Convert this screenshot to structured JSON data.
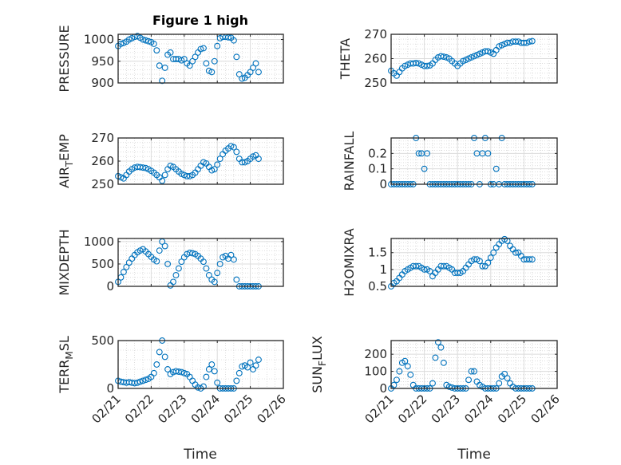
{
  "figure": {
    "title": "Figure 1 high",
    "xlabel": "Time",
    "marker_color": "#0072BD",
    "axes_color": "#262626",
    "grid_color": "#dcdcdc"
  },
  "chart_data": [
    {
      "type": "scatter",
      "id": "pressure",
      "title": "Figure 1 high",
      "ylabel": "PRESSURE",
      "xlabel": "",
      "ylim": [
        900,
        1012
      ],
      "yticks": [
        900,
        950,
        1000
      ],
      "ytick_labels": [
        "900",
        "950",
        "1000"
      ],
      "xlim_hours": [
        0,
        120
      ],
      "xticks_hours": [
        0,
        24,
        48,
        72,
        96,
        120
      ],
      "xtick_labels": [],
      "x_hours": [
        0,
        2,
        4,
        6,
        8,
        10,
        12,
        14,
        16,
        18,
        20,
        22,
        24,
        26,
        28,
        30,
        32,
        34,
        36,
        38,
        40,
        42,
        44,
        46,
        48,
        50,
        52,
        54,
        56,
        58,
        60,
        62,
        64,
        66,
        68,
        70,
        72,
        74,
        76,
        78,
        80,
        82,
        84,
        86,
        88,
        90,
        92,
        94,
        96,
        98,
        100,
        102
      ],
      "values": [
        985,
        990,
        992,
        995,
        1000,
        1003,
        1006,
        1008,
        1004,
        1000,
        998,
        996,
        994,
        990,
        975,
        940,
        905,
        935,
        965,
        970,
        955,
        955,
        955,
        952,
        955,
        945,
        940,
        950,
        960,
        970,
        978,
        980,
        945,
        928,
        925,
        950,
        985,
        1003,
        1006,
        1006,
        1005,
        1004,
        998,
        960,
        920,
        910,
        912,
        918,
        925,
        935,
        945,
        925
      ]
    },
    {
      "type": "scatter",
      "id": "theta",
      "ylabel": "THETA",
      "xlabel": "",
      "ylim": [
        250,
        270
      ],
      "yticks": [
        250,
        260,
        270
      ],
      "ytick_labels": [
        "250",
        "260",
        "270"
      ],
      "xlim_hours": [
        0,
        120
      ],
      "xticks_hours": [
        0,
        24,
        48,
        72,
        96,
        120
      ],
      "xtick_labels": [],
      "x_hours": [
        0,
        2,
        4,
        6,
        8,
        10,
        12,
        14,
        16,
        18,
        20,
        22,
        24,
        26,
        28,
        30,
        32,
        34,
        36,
        38,
        40,
        42,
        44,
        46,
        48,
        50,
        52,
        54,
        56,
        58,
        60,
        62,
        64,
        66,
        68,
        70,
        72,
        74,
        76,
        78,
        80,
        82,
        84,
        86,
        88,
        90,
        92,
        94,
        96,
        98,
        100,
        102
      ],
      "values": [
        255,
        254,
        253,
        254.5,
        256,
        257,
        257.5,
        258,
        258,
        258.2,
        258,
        257.5,
        257,
        257,
        257.2,
        258,
        259.5,
        260.5,
        261,
        260.8,
        260.5,
        260,
        259,
        258,
        257,
        258,
        259,
        259.5,
        260,
        260.5,
        261,
        261.5,
        262,
        262.5,
        263,
        263,
        262.5,
        262,
        263.5,
        265,
        265.5,
        266,
        266.5,
        266.5,
        267,
        267,
        267,
        266.5,
        266.5,
        266.5,
        267,
        267.2
      ]
    },
    {
      "type": "scatter",
      "id": "air_temp",
      "ylabel": "AIR_TEMP",
      "xlabel": "",
      "ylim": [
        250,
        270
      ],
      "yticks": [
        250,
        260,
        270
      ],
      "ytick_labels": [
        "250",
        "260",
        "270"
      ],
      "xlim_hours": [
        0,
        120
      ],
      "xticks_hours": [
        0,
        24,
        48,
        72,
        96,
        120
      ],
      "xtick_labels": [],
      "x_hours": [
        0,
        2,
        4,
        6,
        8,
        10,
        12,
        14,
        16,
        18,
        20,
        22,
        24,
        26,
        28,
        30,
        32,
        34,
        36,
        38,
        40,
        42,
        44,
        46,
        48,
        50,
        52,
        54,
        56,
        58,
        60,
        62,
        64,
        66,
        68,
        70,
        72,
        74,
        76,
        78,
        80,
        82,
        84,
        86,
        88,
        90,
        92,
        94,
        96,
        98,
        100,
        102
      ],
      "values": [
        253.5,
        253,
        252.5,
        254,
        255.5,
        256.5,
        257.2,
        257.5,
        257.4,
        257.2,
        257,
        256.5,
        255.8,
        255,
        254,
        253,
        251.5,
        254,
        256.5,
        258,
        257.5,
        256.5,
        255.5,
        254.5,
        254,
        253.5,
        253.5,
        254,
        255,
        256.5,
        258,
        259.5,
        259,
        257.5,
        256,
        256.5,
        258.5,
        261,
        263,
        264.5,
        265.5,
        266.5,
        266,
        264,
        261,
        259.5,
        259.5,
        260,
        261,
        262,
        262.5,
        261
      ]
    },
    {
      "type": "scatter",
      "id": "rainfall",
      "ylabel": "RAINFALL",
      "xlabel": "",
      "ylim": [
        0,
        0.3
      ],
      "yticks": [
        0,
        0.1,
        0.2
      ],
      "ytick_labels": [
        "0",
        "0.1",
        "0.2"
      ],
      "xlim_hours": [
        0,
        120
      ],
      "xticks_hours": [
        0,
        24,
        48,
        72,
        96,
        120
      ],
      "xtick_labels": [],
      "x_hours": [
        0,
        2,
        4,
        6,
        8,
        10,
        12,
        14,
        16,
        18,
        20,
        22,
        24,
        26,
        28,
        30,
        32,
        34,
        36,
        38,
        40,
        42,
        44,
        46,
        48,
        50,
        52,
        54,
        56,
        58,
        60,
        62,
        64,
        66,
        68,
        70,
        72,
        74,
        76,
        78,
        80,
        82,
        84,
        86,
        88,
        90,
        92,
        94,
        96,
        98,
        100,
        102
      ],
      "values": [
        0,
        0,
        0,
        0,
        0,
        0,
        0,
        0,
        0,
        0.3,
        0.2,
        0.2,
        0.1,
        0.2,
        0,
        0,
        0,
        0,
        0,
        0,
        0,
        0,
        0,
        0,
        0,
        0,
        0,
        0,
        0,
        0,
        0.3,
        0.2,
        0,
        0.2,
        0.3,
        0.2,
        0,
        0,
        0.1,
        0,
        0.3,
        0,
        0,
        0,
        0,
        0,
        0,
        0,
        0,
        0,
        0,
        0
      ]
    },
    {
      "type": "scatter",
      "id": "mixdepth",
      "ylabel": "MIXDEPTH",
      "xlabel": "",
      "ylim": [
        0,
        1070
      ],
      "yticks": [
        0,
        500,
        1000
      ],
      "ytick_labels": [
        "0",
        "500",
        "1000"
      ],
      "xlim_hours": [
        0,
        120
      ],
      "xticks_hours": [
        0,
        24,
        48,
        72,
        96,
        120
      ],
      "xtick_labels": [],
      "x_hours": [
        0,
        2,
        4,
        6,
        8,
        10,
        12,
        14,
        16,
        18,
        20,
        22,
        24,
        26,
        28,
        30,
        32,
        34,
        36,
        38,
        40,
        42,
        44,
        46,
        48,
        50,
        52,
        54,
        56,
        58,
        60,
        62,
        64,
        66,
        68,
        70,
        72,
        74,
        76,
        78,
        80,
        82,
        84,
        86,
        88,
        90,
        92,
        94,
        96,
        98,
        100,
        102
      ],
      "values": [
        100,
        200,
        320,
        430,
        530,
        620,
        700,
        760,
        800,
        830,
        780,
        720,
        660,
        600,
        560,
        800,
        1000,
        900,
        500,
        20,
        100,
        250,
        400,
        550,
        650,
        720,
        750,
        740,
        720,
        680,
        620,
        550,
        400,
        250,
        150,
        100,
        300,
        500,
        650,
        680,
        620,
        700,
        600,
        150,
        0,
        0,
        0,
        0,
        0,
        0,
        0,
        0
      ]
    },
    {
      "type": "scatter",
      "id": "h2omixra",
      "ylabel": "H2OMIXRA",
      "xlabel": "",
      "ylim": [
        0.5,
        1.92
      ],
      "yticks": [
        0.5,
        1,
        1.5
      ],
      "ytick_labels": [
        "0.5",
        "1",
        "1.5"
      ],
      "xlim_hours": [
        0,
        120
      ],
      "xticks_hours": [
        0,
        24,
        48,
        72,
        96,
        120
      ],
      "xtick_labels": [],
      "x_hours": [
        0,
        2,
        4,
        6,
        8,
        10,
        12,
        14,
        16,
        18,
        20,
        22,
        24,
        26,
        28,
        30,
        32,
        34,
        36,
        38,
        40,
        42,
        44,
        46,
        48,
        50,
        52,
        54,
        56,
        58,
        60,
        62,
        64,
        66,
        68,
        70,
        72,
        74,
        76,
        78,
        80,
        82,
        84,
        86,
        88,
        90,
        92,
        94,
        96,
        98,
        100,
        102
      ],
      "values": [
        0.5,
        0.6,
        0.65,
        0.75,
        0.85,
        0.95,
        1.0,
        1.05,
        1.1,
        1.1,
        1.1,
        1.05,
        1.0,
        1.0,
        0.95,
        0.8,
        0.9,
        1.0,
        1.1,
        1.1,
        1.1,
        1.05,
        1.0,
        0.9,
        0.9,
        0.9,
        0.95,
        1.05,
        1.15,
        1.25,
        1.3,
        1.3,
        1.25,
        1.1,
        1.1,
        1.2,
        1.35,
        1.5,
        1.65,
        1.75,
        1.85,
        1.9,
        1.85,
        1.7,
        1.6,
        1.5,
        1.5,
        1.4,
        1.3,
        1.3,
        1.3,
        1.3
      ]
    },
    {
      "type": "scatter",
      "id": "terr_msl",
      "ylabel": "TERR_MSL",
      "xlabel": "Time",
      "ylim": [
        0,
        500
      ],
      "yticks": [
        0,
        500
      ],
      "ytick_labels": [
        "0",
        "500"
      ],
      "xlim_hours": [
        0,
        120
      ],
      "xticks_hours": [
        0,
        24,
        48,
        72,
        96,
        120
      ],
      "xtick_labels": [
        "02/21",
        "02/22",
        "02/23",
        "02/24",
        "02/25",
        "02/26"
      ],
      "x_hours": [
        0,
        2,
        4,
        6,
        8,
        10,
        12,
        14,
        16,
        18,
        20,
        22,
        24,
        26,
        28,
        30,
        32,
        34,
        36,
        38,
        40,
        42,
        44,
        46,
        48,
        50,
        52,
        54,
        56,
        58,
        60,
        62,
        64,
        66,
        68,
        70,
        72,
        74,
        76,
        78,
        80,
        82,
        84,
        86,
        88,
        90,
        92,
        94,
        96,
        98,
        100,
        102
      ],
      "values": [
        80,
        70,
        65,
        60,
        65,
        60,
        55,
        60,
        70,
        80,
        90,
        100,
        120,
        160,
        250,
        380,
        500,
        330,
        200,
        150,
        170,
        180,
        175,
        170,
        160,
        150,
        120,
        80,
        40,
        10,
        0,
        20,
        120,
        200,
        250,
        180,
        60,
        0,
        0,
        0,
        0,
        0,
        0,
        80,
        160,
        230,
        240,
        220,
        270,
        200,
        240,
        300
      ]
    },
    {
      "type": "scatter",
      "id": "sun_flux",
      "ylabel": "SUN_FLUX",
      "xlabel": "Time",
      "ylim": [
        0,
        280
      ],
      "yticks": [
        0,
        100,
        200
      ],
      "ytick_labels": [
        "0",
        "100",
        "200"
      ],
      "xlim_hours": [
        0,
        120
      ],
      "xticks_hours": [
        0,
        24,
        48,
        72,
        96,
        120
      ],
      "xtick_labels": [
        "02/21",
        "02/22",
        "02/23",
        "02/24",
        "02/25",
        "02/26"
      ],
      "x_hours": [
        0,
        2,
        4,
        6,
        8,
        10,
        12,
        14,
        16,
        18,
        20,
        22,
        24,
        26,
        28,
        30,
        32,
        34,
        36,
        38,
        40,
        42,
        44,
        46,
        48,
        50,
        52,
        54,
        56,
        58,
        60,
        62,
        64,
        66,
        68,
        70,
        72,
        74,
        76,
        78,
        80,
        82,
        84,
        86,
        88,
        90,
        92,
        94,
        96,
        98,
        100,
        102
      ],
      "values": [
        0,
        20,
        50,
        100,
        150,
        160,
        130,
        80,
        20,
        0,
        0,
        0,
        0,
        0,
        0,
        30,
        180,
        270,
        240,
        150,
        20,
        10,
        5,
        0,
        0,
        0,
        0,
        0,
        50,
        100,
        100,
        40,
        20,
        10,
        0,
        0,
        0,
        0,
        0,
        30,
        70,
        85,
        60,
        30,
        10,
        0,
        0,
        0,
        0,
        0,
        0,
        0
      ]
    }
  ]
}
